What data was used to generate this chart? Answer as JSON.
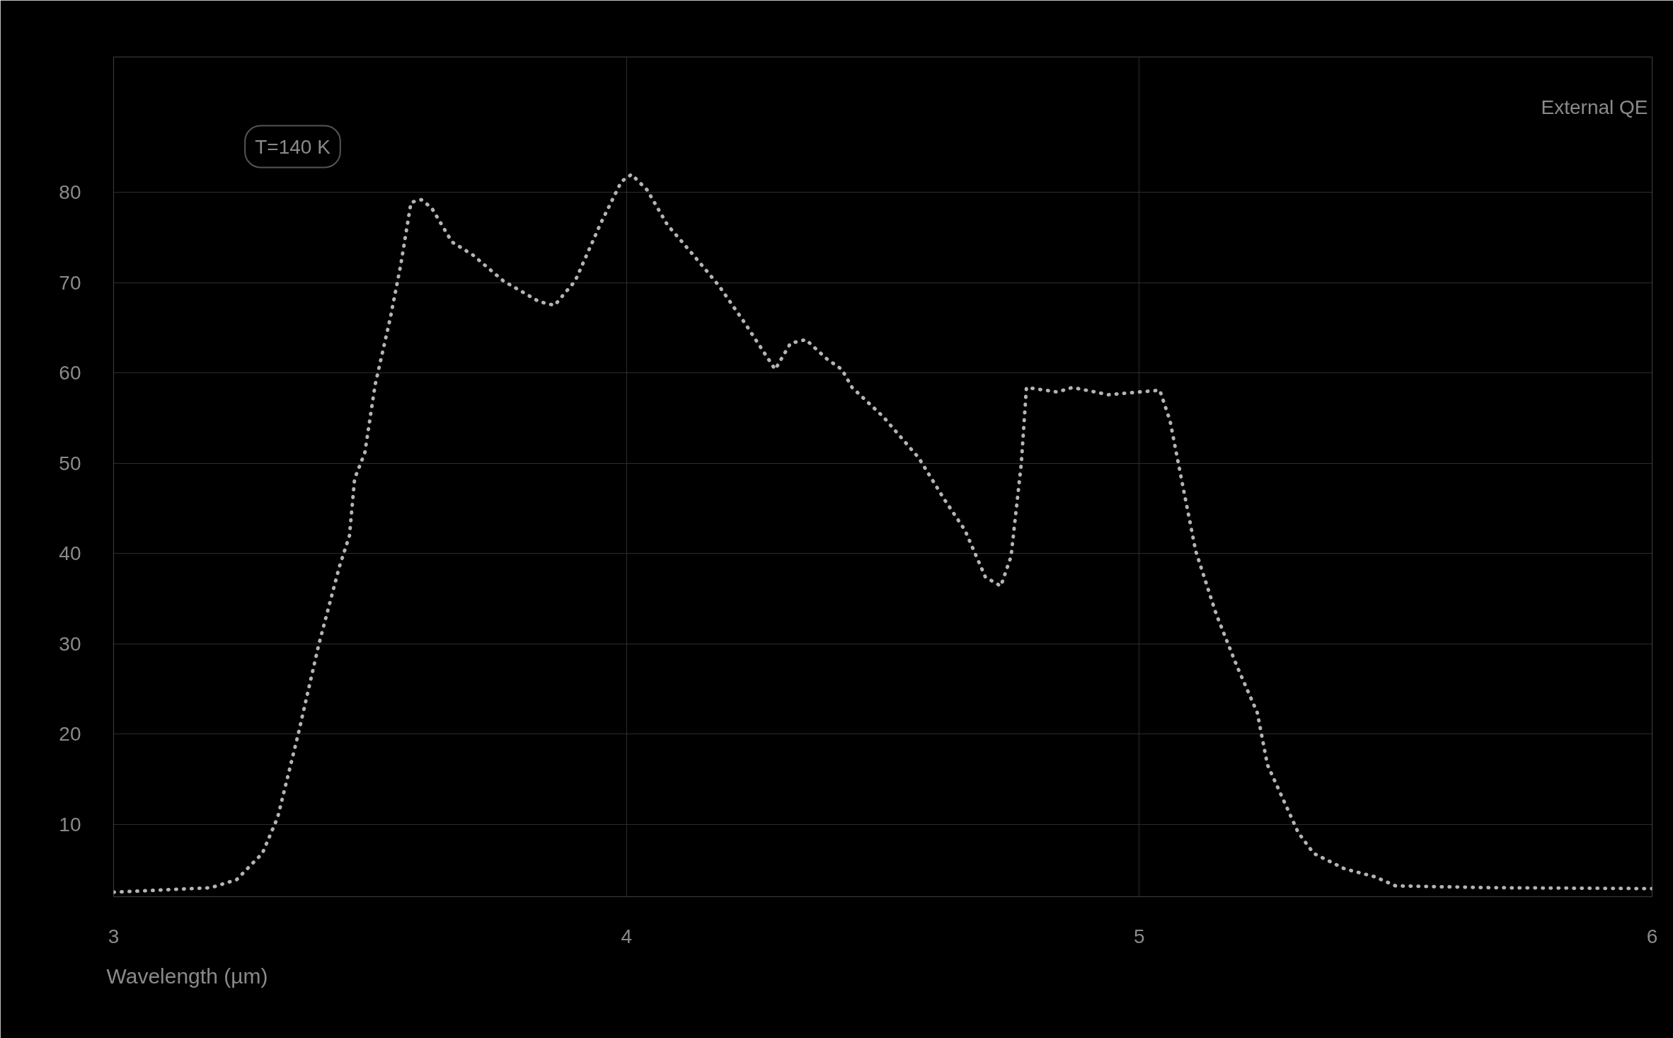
{
  "chart_data": {
    "type": "line",
    "xlabel": "Wavelength (µm)",
    "ylabel": "External QE",
    "annotations": [
      "T=140 K"
    ],
    "xlim": [
      3,
      6
    ],
    "ylim": [
      2,
      95
    ],
    "xticks": [
      3,
      4,
      5,
      6
    ],
    "yticks": [
      10,
      20,
      30,
      40,
      50,
      60,
      70,
      80
    ],
    "grid": true,
    "line_style": "dotted",
    "series": [
      {
        "color": "#b4b4b4",
        "x": [
          3.0,
          3.19,
          3.24,
          3.29,
          3.32,
          3.36,
          3.4,
          3.44,
          3.46,
          3.47,
          3.49,
          3.51,
          3.54,
          3.56,
          3.58,
          3.6,
          3.62,
          3.66,
          3.7,
          3.76,
          3.83,
          3.86,
          3.9,
          3.95,
          3.99,
          4.01,
          4.04,
          4.08,
          4.13,
          4.18,
          4.23,
          4.29,
          4.32,
          4.35,
          4.39,
          4.42,
          4.44,
          4.5,
          4.57,
          4.62,
          4.66,
          4.7,
          4.73,
          4.75,
          4.77,
          4.78,
          4.84,
          4.87,
          4.94,
          5.0,
          5.04,
          5.06,
          5.08,
          5.11,
          5.15,
          5.19,
          5.23,
          5.25,
          5.31,
          5.34,
          5.4,
          5.46,
          5.5,
          5.69,
          6.0
        ],
        "values": [
          2.5,
          3.0,
          3.9,
          6.8,
          10.8,
          20,
          29.9,
          38.5,
          42,
          48.3,
          51.2,
          58.7,
          66.2,
          72,
          78.9,
          79.2,
          78.3,
          74.5,
          73.1,
          70.2,
          67.9,
          67.5,
          70.2,
          76.6,
          81.2,
          82.0,
          80.3,
          76.4,
          73.1,
          69.7,
          65.6,
          60.4,
          63.3,
          63.7,
          61.6,
          60.4,
          58.4,
          55.2,
          50.6,
          46.0,
          42.6,
          37.4,
          36.4,
          39.7,
          50,
          58.4,
          57.9,
          58.4,
          57.6,
          57.9,
          58.1,
          54.7,
          48.9,
          40.3,
          33.3,
          27.6,
          22.4,
          16.6,
          9.1,
          6.8,
          5.1,
          4.2,
          3.2,
          3.0,
          2.9
        ]
      }
    ]
  }
}
